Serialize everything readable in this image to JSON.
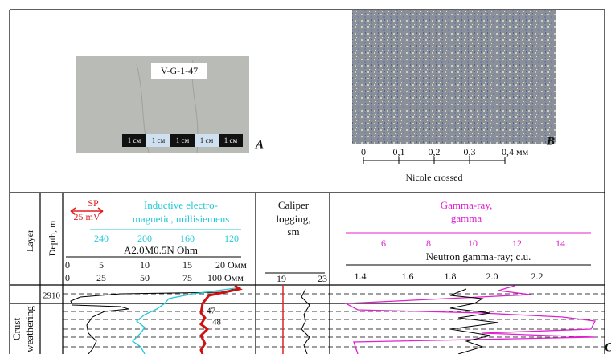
{
  "photo_a": {
    "label": "V-G-1-47",
    "scale": [
      "1 см",
      "1 см",
      "1 см",
      "1 см",
      "1 см"
    ],
    "letter": "A"
  },
  "photo_b": {
    "letter": "B",
    "scale": [
      "0",
      "0,1",
      "0,2",
      "0,3",
      "0,4 мм"
    ],
    "caption": "Nicole crossed"
  },
  "log": {
    "layer_header": "Layer",
    "depth_header": "Depth, m",
    "sp_label": "SP",
    "sp_scale": "25 mV",
    "inductive_title": [
      "Inductive electro-",
      "magnetic, millisiemens"
    ],
    "inductive_scale": [
      "240",
      "200",
      "160",
      "120"
    ],
    "resistivity_title": "A2.0M0.5N Ohm",
    "res_scale_1": [
      "0",
      "5",
      "10",
      "15",
      "20 Омм"
    ],
    "res_scale_2": [
      "0",
      "25",
      "50",
      "75",
      "100 Омм"
    ],
    "caliper_title": [
      "Caliper",
      "logging,",
      "sm"
    ],
    "caliper_scale": [
      "19",
      "23"
    ],
    "gamma_title": [
      "Gamma-ray,",
      "gamma"
    ],
    "gamma_scale": [
      "6",
      "8",
      "10",
      "12",
      "14"
    ],
    "neutron_title": "Neutron gamma-ray; c.u.",
    "neutron_scale": [
      "1.4",
      "1.6",
      "1.8",
      "2.0",
      "2.2"
    ],
    "depth": "2910",
    "layer_name": [
      "Crust",
      "weathering"
    ],
    "sample_labels": [
      "47",
      "48"
    ],
    "next_panel": "C"
  }
}
